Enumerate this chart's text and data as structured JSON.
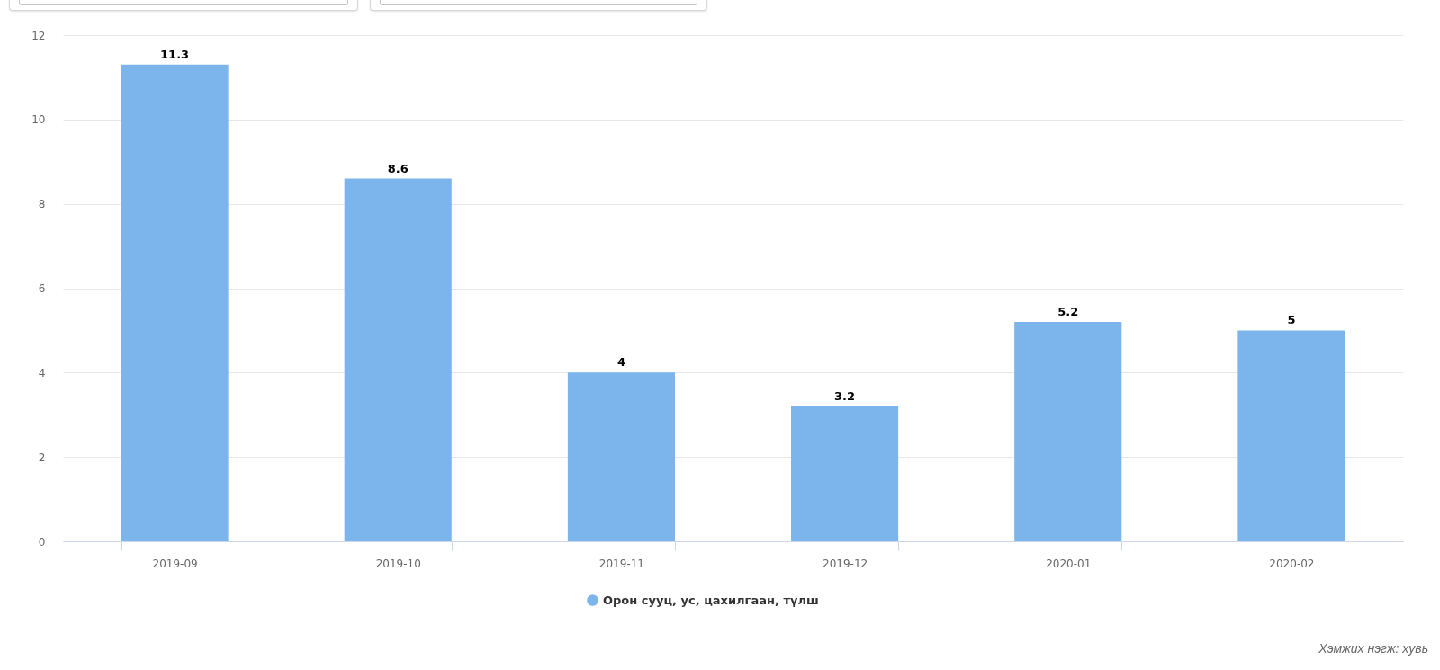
{
  "chart_data": {
    "type": "bar",
    "categories": [
      "2019-09",
      "2019-10",
      "2019-11",
      "2019-12",
      "2020-01",
      "2020-02"
    ],
    "series": [
      {
        "name": "Орон сууц, ус, цахилгаан, түлш",
        "color": "#7cb5ec",
        "values": [
          11.3,
          8.6,
          4,
          3.2,
          5.2,
          5
        ]
      }
    ],
    "ylim": [
      0,
      12
    ],
    "yticks": [
      0,
      2,
      4,
      6,
      8,
      10,
      12
    ],
    "grid": "y",
    "legend": "bottom",
    "data_labels": true,
    "annotations": [
      "Хэмжих нэгж: хувь"
    ]
  }
}
